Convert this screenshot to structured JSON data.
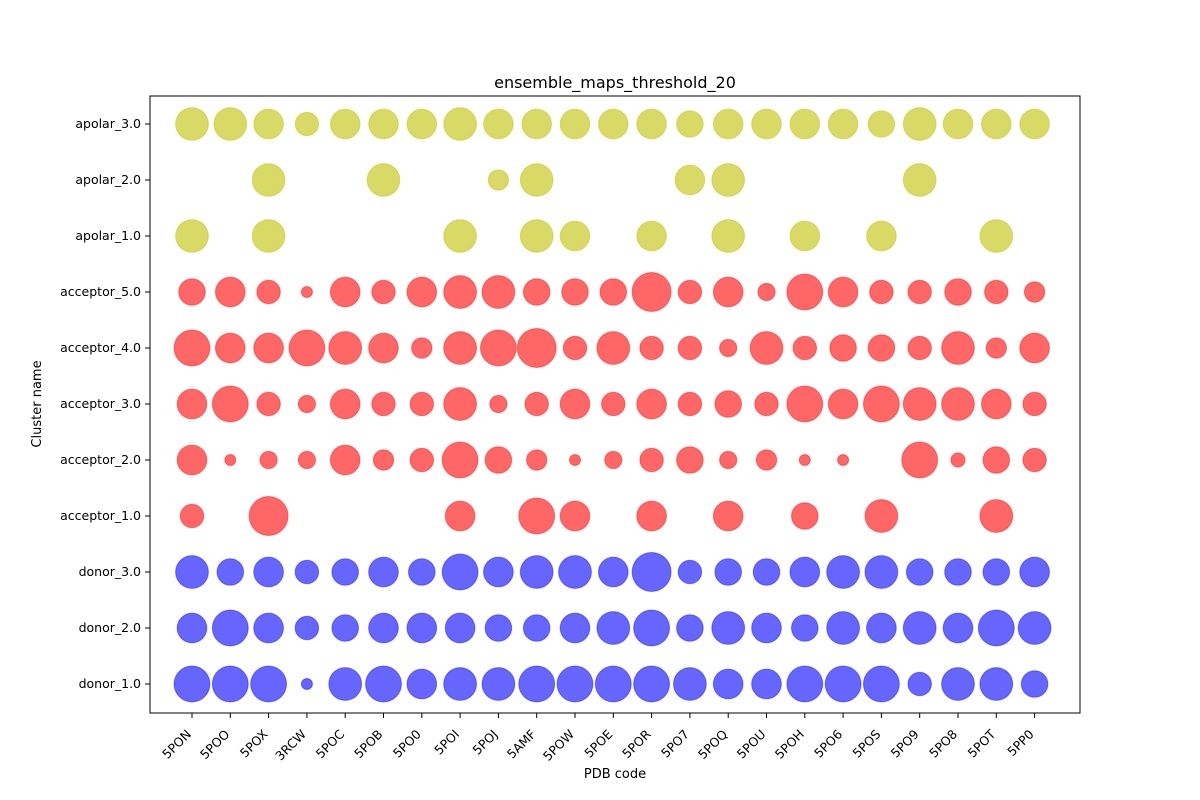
{
  "chart_data": {
    "type": "scatter",
    "title": "ensemble_maps_threshold_20",
    "xlabel": "PDB code",
    "ylabel": "Cluster name",
    "grid": false,
    "legend": false,
    "categories_x": [
      "5PON",
      "5POO",
      "5POX",
      "3RCW",
      "5POC",
      "5POB",
      "5PO0",
      "5POI",
      "5POJ",
      "5AMF",
      "5POW",
      "5POE",
      "5POR",
      "5PO7",
      "5POQ",
      "5POU",
      "5POH",
      "5PO6",
      "5POS",
      "5PO9",
      "5PO8",
      "5POT",
      "5PP0"
    ],
    "categories_y": [
      "donor_1.0",
      "donor_2.0",
      "donor_3.0",
      "acceptor_1.0",
      "acceptor_2.0",
      "acceptor_3.0",
      "acceptor_4.0",
      "acceptor_5.0",
      "apolar_1.0",
      "apolar_2.0",
      "apolar_3.0"
    ],
    "point_colors": {
      "donor": "#0000ff",
      "acceptor": "#ff0000",
      "apolar": "#bfbf00"
    },
    "point_alpha": 0.6,
    "size_note_units": "relative point size (marker area scale)",
    "series": [
      {
        "key": "donor_1.0",
        "group": "donor",
        "sizes": [
          9,
          9,
          9,
          1,
          8,
          9,
          7,
          8,
          8,
          9,
          9,
          9,
          9,
          8,
          7,
          7,
          9,
          9,
          9,
          5,
          8,
          8,
          6
        ]
      },
      {
        "key": "donor_2.0",
        "group": "donor",
        "sizes": [
          7,
          9,
          7,
          5,
          6,
          7,
          7,
          7,
          6,
          6,
          7,
          8,
          9,
          6,
          8,
          7,
          6,
          8,
          7,
          8,
          7,
          9,
          8
        ]
      },
      {
        "key": "donor_3.0",
        "group": "donor",
        "sizes": [
          8,
          6,
          7,
          5,
          6,
          7,
          6,
          9,
          7,
          8,
          8,
          7,
          10,
          5,
          6,
          6,
          7,
          8,
          8,
          6,
          6,
          6,
          7
        ]
      },
      {
        "key": "acceptor_1.0",
        "group": "acceptor",
        "sizes": [
          5,
          0,
          10,
          0,
          0,
          0,
          0,
          7,
          0,
          9,
          7,
          0,
          7,
          0,
          7,
          0,
          6,
          0,
          8,
          0,
          0,
          8,
          0
        ]
      },
      {
        "key": "acceptor_2.0",
        "group": "acceptor",
        "sizes": [
          7,
          1,
          3,
          3,
          7,
          4,
          5,
          9,
          6,
          4,
          1,
          3,
          5,
          6,
          3,
          4,
          1,
          1,
          0,
          9,
          2,
          6,
          5
        ]
      },
      {
        "key": "acceptor_3.0",
        "group": "acceptor",
        "sizes": [
          7,
          9,
          5,
          3,
          7,
          5,
          5,
          8,
          3,
          5,
          7,
          5,
          7,
          5,
          6,
          5,
          9,
          7,
          9,
          8,
          8,
          7,
          5
        ]
      },
      {
        "key": "acceptor_4.0",
        "group": "acceptor",
        "sizes": [
          9,
          7,
          7,
          9,
          8,
          7,
          4,
          8,
          9,
          10,
          5,
          8,
          5,
          5,
          3,
          8,
          5,
          6,
          6,
          5,
          8,
          4,
          7
        ]
      },
      {
        "key": "acceptor_5.0",
        "group": "acceptor",
        "sizes": [
          6,
          7,
          5,
          1,
          7,
          5,
          7,
          8,
          8,
          6,
          6,
          6,
          10,
          5,
          7,
          3,
          9,
          7,
          5,
          5,
          6,
          5,
          4
        ]
      },
      {
        "key": "apolar_1.0",
        "group": "apolar",
        "sizes": [
          8,
          0,
          8,
          0,
          0,
          0,
          0,
          8,
          0,
          8,
          7,
          0,
          7,
          0,
          8,
          0,
          7,
          0,
          7,
          0,
          0,
          8,
          0
        ]
      },
      {
        "key": "apolar_2.0",
        "group": "apolar",
        "sizes": [
          0,
          0,
          8,
          0,
          0,
          8,
          0,
          0,
          4,
          8,
          0,
          0,
          0,
          7,
          8,
          0,
          0,
          0,
          0,
          8,
          0,
          0,
          0
        ]
      },
      {
        "key": "apolar_3.0",
        "group": "apolar",
        "sizes": [
          8,
          8,
          7,
          5,
          7,
          7,
          7,
          8,
          7,
          7,
          7,
          7,
          7,
          6,
          7,
          7,
          7,
          7,
          6,
          8,
          7,
          7,
          7
        ]
      }
    ]
  }
}
